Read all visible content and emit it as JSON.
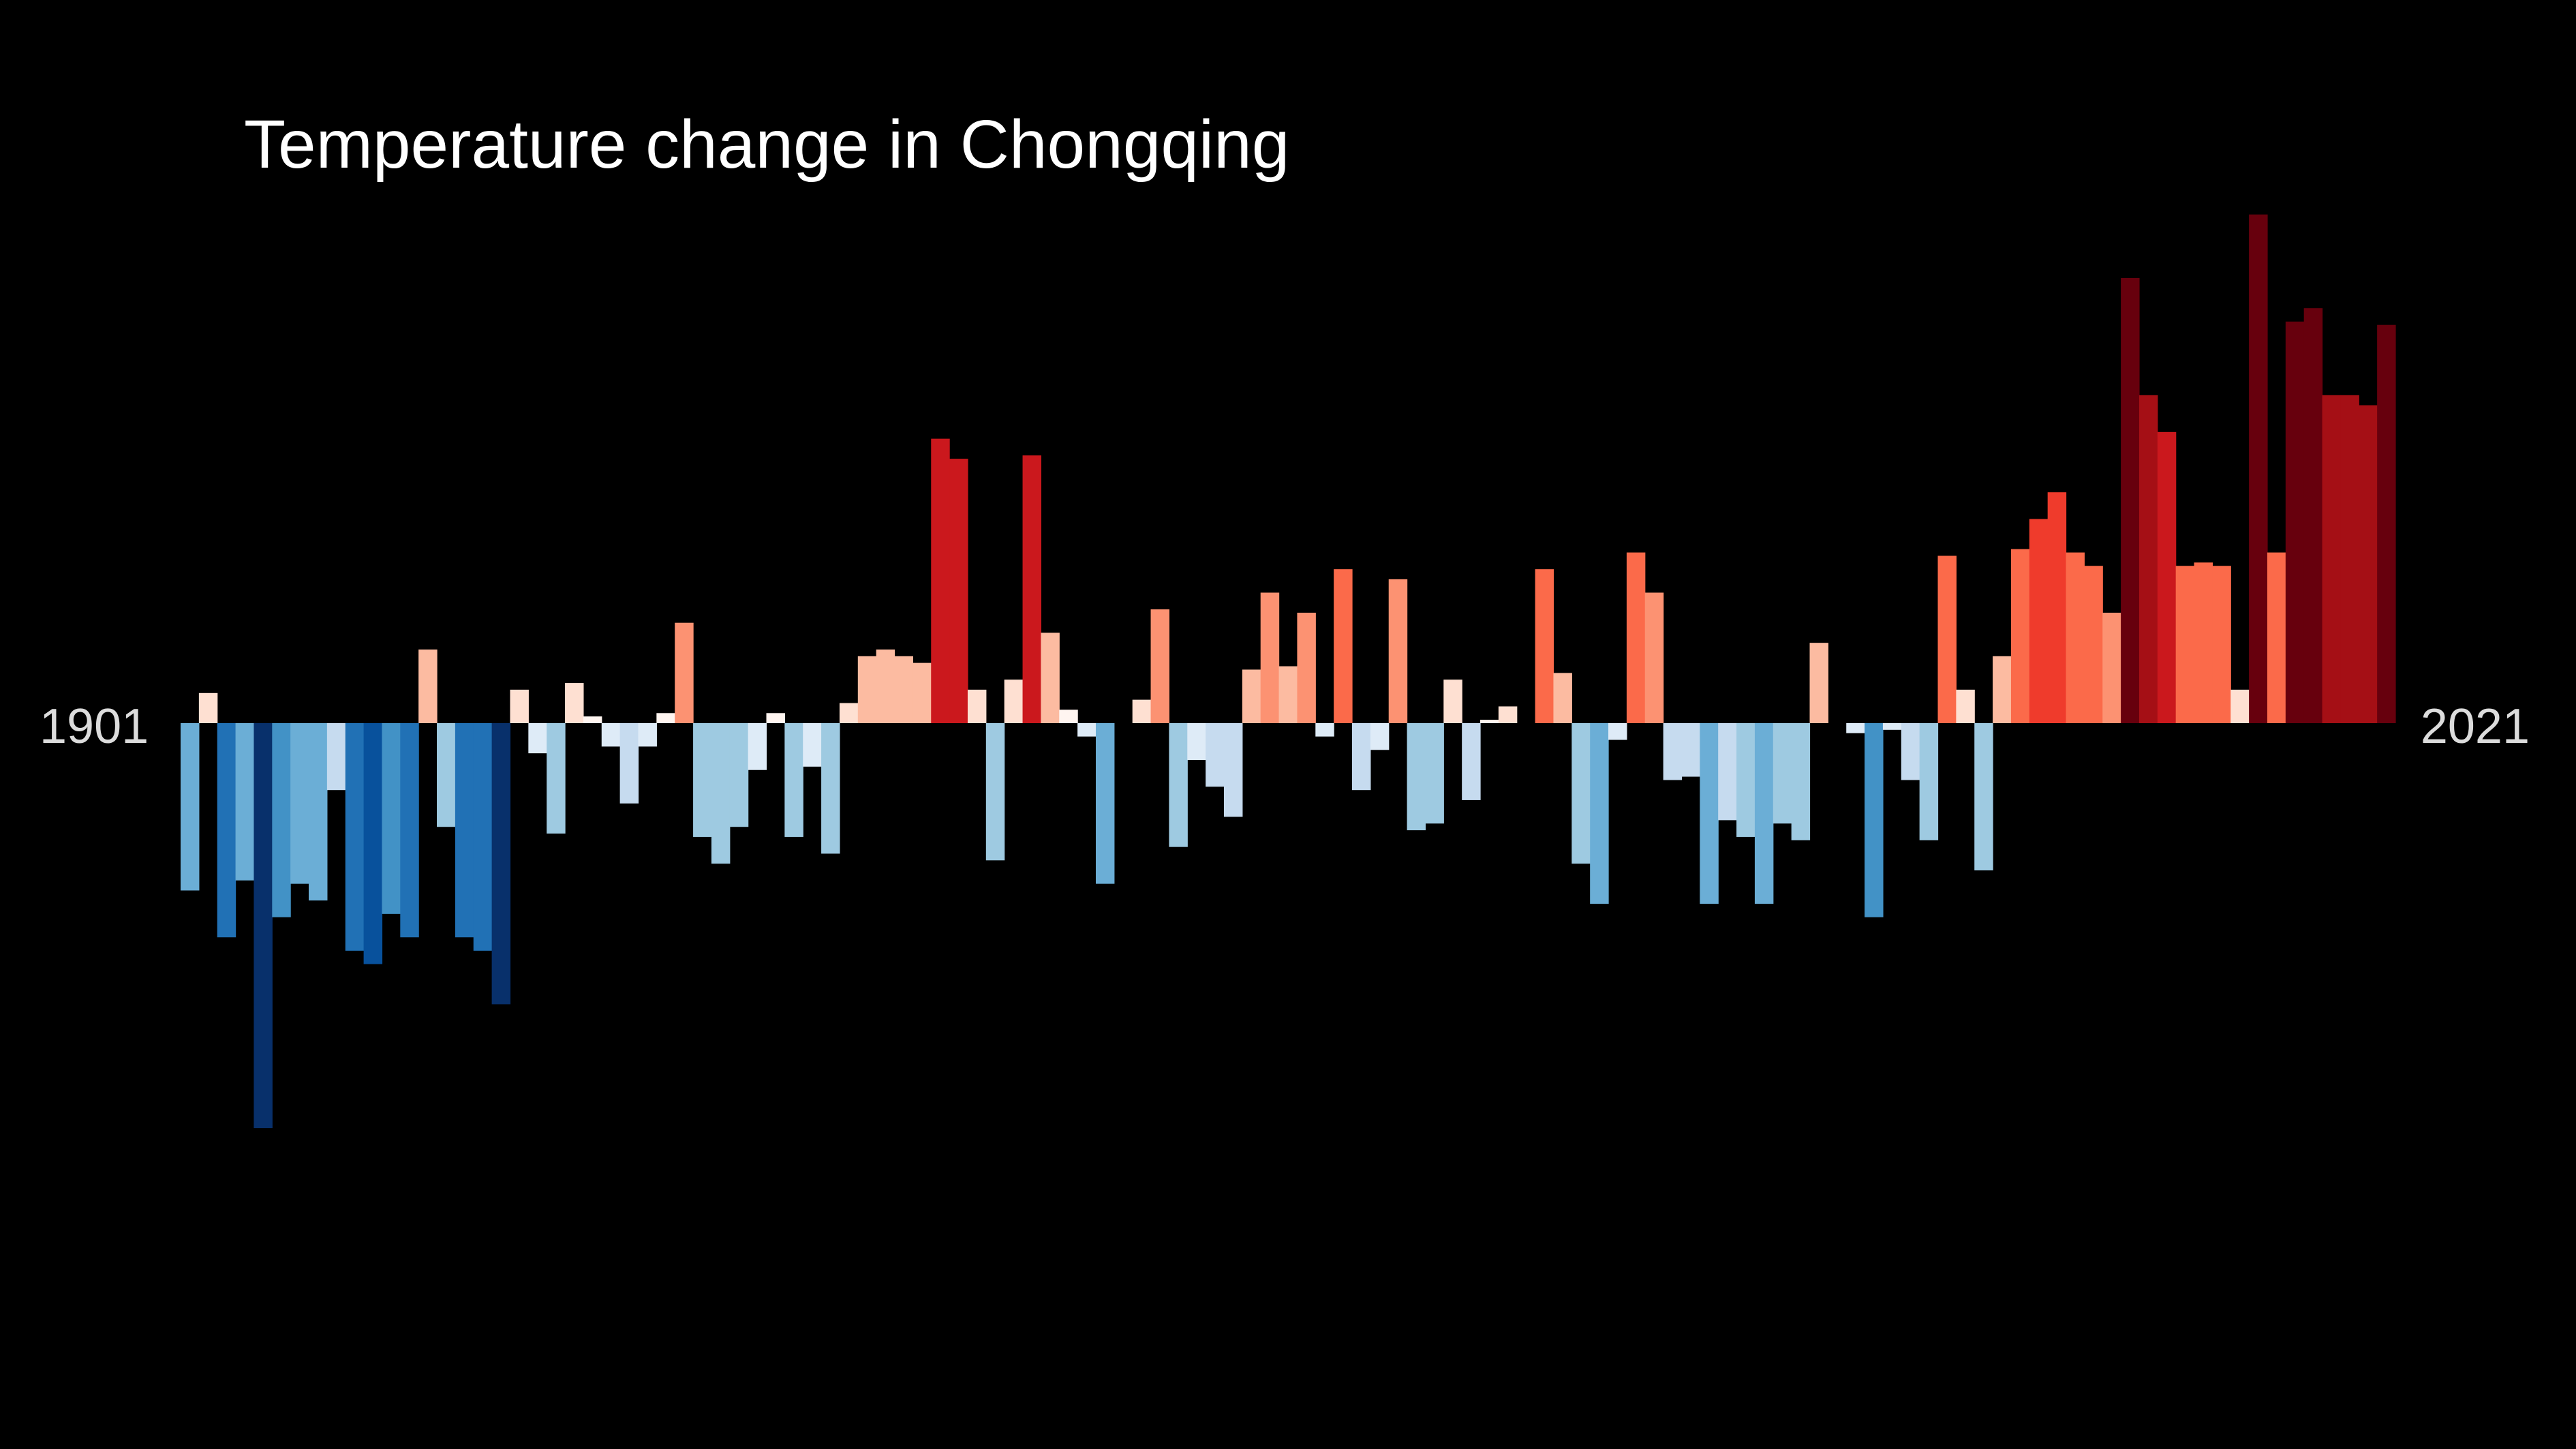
{
  "title": "Temperature change in Chongqing",
  "start_year_label": "1901",
  "end_year_label": "2021",
  "colors": {
    "background": "#000000",
    "title": "#ffffff",
    "year_labels": "#dcdcdc"
  },
  "chart_data": {
    "type": "bar",
    "title": "Temperature change in Chongqing",
    "xlabel": "",
    "ylabel": "",
    "x_start": 1901,
    "x_end": 2021,
    "ylim": [
      -1.27,
      1.78
    ],
    "grid": false,
    "legend": "none",
    "values": [
      -0.5,
      0.09,
      -0.64,
      -0.47,
      -1.21,
      -0.58,
      -0.48,
      -0.53,
      -0.2,
      -0.68,
      -0.72,
      -0.57,
      -0.64,
      0.22,
      -0.31,
      -0.64,
      -0.68,
      -0.84,
      0.1,
      -0.09,
      -0.33,
      0.12,
      0.02,
      -0.07,
      -0.24,
      -0.07,
      0.03,
      0.3,
      -0.34,
      -0.42,
      -0.31,
      -0.14,
      0.03,
      -0.34,
      -0.13,
      -0.39,
      0.06,
      0.2,
      0.22,
      0.2,
      0.18,
      0.85,
      0.79,
      0.1,
      -0.41,
      0.13,
      0.8,
      0.27,
      0.04,
      -0.04,
      -0.48,
      0.0,
      0.07,
      0.34,
      -0.37,
      -0.11,
      -0.19,
      -0.28,
      0.16,
      0.39,
      0.17,
      0.33,
      -0.04,
      0.46,
      -0.2,
      -0.08,
      0.43,
      -0.32,
      -0.3,
      0.13,
      -0.23,
      0.01,
      0.05,
      0.0,
      0.46,
      0.15,
      -0.42,
      -0.54,
      -0.05,
      0.51,
      0.39,
      -0.17,
      -0.16,
      -0.54,
      -0.29,
      -0.34,
      -0.54,
      -0.3,
      -0.35,
      0.24,
      0.0,
      -0.03,
      -0.58,
      -0.02,
      -0.17,
      -0.35,
      0.5,
      0.1,
      -0.44,
      0.2,
      0.52,
      0.61,
      0.69,
      0.51,
      0.47,
      0.33,
      1.33,
      0.98,
      0.87,
      0.47,
      0.48,
      0.47,
      0.1,
      1.52,
      0.51,
      1.2,
      1.24,
      0.98,
      0.98,
      0.95,
      1.19
    ]
  }
}
